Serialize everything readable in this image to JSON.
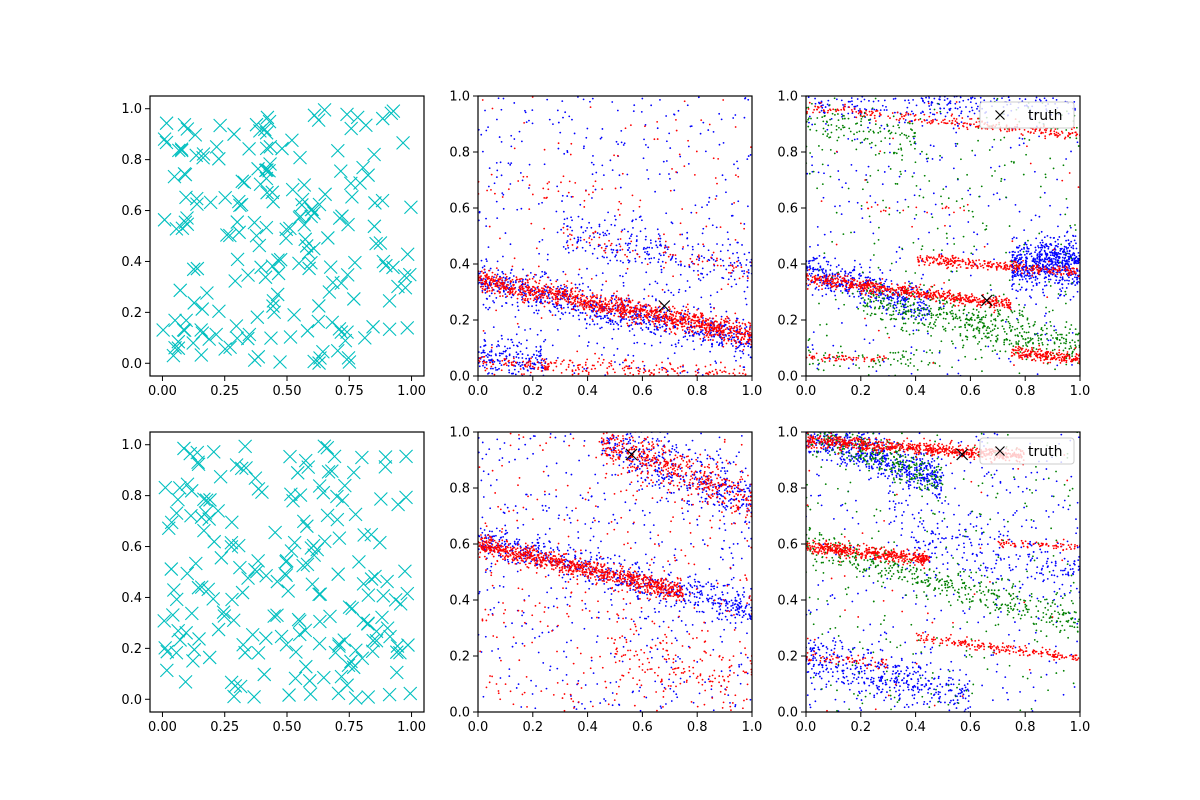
{
  "figure": {
    "colors": {
      "cyan": "#00bfbf",
      "red": "#ff0000",
      "blue": "#0000ff",
      "green": "#008000",
      "black": "#000000"
    },
    "legend_label": "truth"
  },
  "chart_data": [
    {
      "type": "scatter",
      "row": 0,
      "col": 0,
      "xlim": [
        -0.05,
        1.05
      ],
      "ylim": [
        -0.05,
        1.05
      ],
      "xticks": [
        "0.00",
        "0.25",
        "0.50",
        "0.75",
        "1.00"
      ],
      "yticks": [
        "0.0",
        "0.2",
        "0.4",
        "0.6",
        "0.8",
        "1.0"
      ],
      "series": [
        {
          "marker": "x",
          "color": "cyan",
          "count": 200,
          "distribution": "uniform",
          "seed": 11
        }
      ]
    },
    {
      "type": "scatter",
      "row": 0,
      "col": 1,
      "xlim": [
        0,
        1
      ],
      "ylim": [
        0,
        1
      ],
      "xticks": [
        "0.0",
        "0.2",
        "0.4",
        "0.6",
        "0.8",
        "1.0"
      ],
      "yticks": [
        "0.0",
        "0.2",
        "0.4",
        "0.6",
        "0.8",
        "1.0"
      ],
      "series": [
        {
          "color": "blue",
          "marker": "dot",
          "uniform": 450,
          "bands": [
            {
              "x": [
                0.0,
                0.25
              ],
              "y0": 0.07,
              "slope": -0.1,
              "sigma": 0.04,
              "n": 180
            },
            {
              "x": [
                0.0,
                1.0
              ],
              "y0": 0.34,
              "slope": -0.22,
              "sigma": 0.035,
              "n": 700
            },
            {
              "x": [
                0.3,
                1.0
              ],
              "y0": 0.56,
              "slope": -0.18,
              "sigma": 0.04,
              "n": 220
            }
          ]
        },
        {
          "color": "red",
          "marker": "dot",
          "uniform": 120,
          "bands": [
            {
              "x": [
                0.0,
                1.0
              ],
              "y0": 0.345,
              "slope": -0.2,
              "sigma": 0.02,
              "n": 1200
            },
            {
              "x": [
                0.0,
                1.0
              ],
              "y0": 0.05,
              "slope": -0.05,
              "sigma": 0.015,
              "n": 250
            },
            {
              "x": [
                0.3,
                1.0
              ],
              "y0": 0.56,
              "slope": -0.18,
              "sigma": 0.025,
              "n": 80
            },
            {
              "x": [
                0.0,
                0.6
              ],
              "y0": 0.67,
              "slope": -0.05,
              "sigma": 0.02,
              "n": 30
            }
          ]
        }
      ],
      "truth": {
        "x": 0.68,
        "y": 0.25
      }
    },
    {
      "type": "scatter",
      "row": 0,
      "col": 2,
      "xlim": [
        0,
        1
      ],
      "ylim": [
        0,
        1
      ],
      "xticks": [
        "0.0",
        "0.2",
        "0.4",
        "0.6",
        "0.8",
        "1.0"
      ],
      "yticks": [
        "0.0",
        "0.2",
        "0.4",
        "0.6",
        "0.8",
        "1.0"
      ],
      "series": [
        {
          "color": "blue",
          "marker": "dot",
          "uniform": 300,
          "bands": [
            {
              "x": [
                0.0,
                0.45
              ],
              "y0": 0.38,
              "slope": -0.3,
              "sigma": 0.035,
              "n": 400
            },
            {
              "x": [
                0.75,
                1.0
              ],
              "y0": 0.4,
              "slope": 0.0,
              "sigma": 0.045,
              "n": 600
            },
            {
              "x": [
                0.0,
                1.0
              ],
              "y0": 0.95,
              "slope": 0.05,
              "sigma": 0.03,
              "n": 250
            }
          ]
        },
        {
          "color": "green",
          "marker": "dot",
          "uniform": 300,
          "bands": [
            {
              "x": [
                0.2,
                1.0
              ],
              "y0": 0.32,
              "slope": -0.22,
              "sigma": 0.04,
              "n": 500
            },
            {
              "x": [
                0.0,
                0.4
              ],
              "y0": 0.93,
              "slope": -0.2,
              "sigma": 0.04,
              "n": 120
            },
            {
              "x": [
                0.0,
                0.5
              ],
              "y0": 0.06,
              "slope": 0.0,
              "sigma": 0.02,
              "n": 60
            }
          ]
        },
        {
          "color": "red",
          "marker": "dot",
          "uniform": 30,
          "bands": [
            {
              "x": [
                0.0,
                0.75
              ],
              "y0": 0.35,
              "slope": -0.13,
              "sigma": 0.012,
              "n": 600
            },
            {
              "x": [
                0.4,
                1.0
              ],
              "y0": 0.45,
              "slope": -0.08,
              "sigma": 0.01,
              "n": 300
            },
            {
              "x": [
                0.0,
                1.0
              ],
              "y0": 0.96,
              "slope": -0.1,
              "sigma": 0.01,
              "n": 250
            },
            {
              "x": [
                0.75,
                1.0
              ],
              "y0": 0.16,
              "slope": -0.1,
              "sigma": 0.012,
              "n": 200
            },
            {
              "x": [
                0.0,
                0.3
              ],
              "y0": 0.065,
              "slope": -0.02,
              "sigma": 0.006,
              "n": 60
            },
            {
              "x": [
                0.2,
                0.6
              ],
              "y0": 0.6,
              "slope": 0.0,
              "sigma": 0.008,
              "n": 20
            }
          ]
        }
      ],
      "truth": {
        "x": 0.66,
        "y": 0.27
      },
      "legend": {
        "placement": "upper right",
        "label": "truth"
      }
    },
    {
      "type": "scatter",
      "row": 1,
      "col": 0,
      "xlim": [
        -0.05,
        1.05
      ],
      "ylim": [
        -0.05,
        1.05
      ],
      "xticks": [
        "0.00",
        "0.25",
        "0.50",
        "0.75",
        "1.00"
      ],
      "yticks": [
        "0.0",
        "0.2",
        "0.4",
        "0.6",
        "0.8",
        "1.0"
      ],
      "series": [
        {
          "marker": "x",
          "color": "cyan",
          "count": 200,
          "distribution": "uniform",
          "seed": 23
        }
      ]
    },
    {
      "type": "scatter",
      "row": 1,
      "col": 1,
      "xlim": [
        0,
        1
      ],
      "ylim": [
        0,
        1
      ],
      "xticks": [
        "0.0",
        "0.2",
        "0.4",
        "0.6",
        "0.8",
        "1.0"
      ],
      "yticks": [
        "0.0",
        "0.2",
        "0.4",
        "0.6",
        "0.8",
        "1.0"
      ],
      "series": [
        {
          "color": "blue",
          "marker": "dot",
          "uniform": 500,
          "bands": [
            {
              "x": [
                0.0,
                1.0
              ],
              "y0": 0.62,
              "slope": -0.26,
              "sigma": 0.03,
              "n": 600
            },
            {
              "x": [
                0.45,
                1.0
              ],
              "y0": 1.15,
              "slope": -0.4,
              "sigma": 0.05,
              "n": 400
            }
          ]
        },
        {
          "color": "red",
          "marker": "dot",
          "uniform": 350,
          "bands": [
            {
              "x": [
                0.0,
                0.75
              ],
              "y0": 0.6,
              "slope": -0.23,
              "sigma": 0.018,
              "n": 900
            },
            {
              "x": [
                0.45,
                1.0
              ],
              "y0": 1.15,
              "slope": -0.4,
              "sigma": 0.04,
              "n": 450
            },
            {
              "x": [
                0.5,
                1.0
              ],
              "y0": 0.3,
              "slope": -0.18,
              "sigma": 0.05,
              "n": 150
            }
          ]
        }
      ],
      "truth": {
        "x": 0.56,
        "y": 0.92
      }
    },
    {
      "type": "scatter",
      "row": 1,
      "col": 2,
      "xlim": [
        0,
        1
      ],
      "ylim": [
        0,
        1
      ],
      "xticks": [
        "0.0",
        "0.2",
        "0.4",
        "0.6",
        "0.8",
        "1.0"
      ],
      "yticks": [
        "0.0",
        "0.2",
        "0.4",
        "0.6",
        "0.8",
        "1.0"
      ],
      "series": [
        {
          "color": "blue",
          "marker": "dot",
          "uniform": 350,
          "bands": [
            {
              "x": [
                0.0,
                0.5
              ],
              "y0": 1.0,
              "slope": -0.35,
              "sigma": 0.035,
              "n": 600
            },
            {
              "x": [
                0.0,
                0.6
              ],
              "y0": 0.2,
              "slope": -0.25,
              "sigma": 0.04,
              "n": 400
            },
            {
              "x": [
                0.3,
                1.0
              ],
              "y0": 0.75,
              "slope": -0.25,
              "sigma": 0.06,
              "n": 250
            }
          ]
        },
        {
          "color": "green",
          "marker": "dot",
          "uniform": 250,
          "bands": [
            {
              "x": [
                0.0,
                0.5
              ],
              "y0": 1.0,
              "slope": -0.35,
              "sigma": 0.035,
              "n": 300
            },
            {
              "x": [
                0.0,
                1.0
              ],
              "y0": 0.6,
              "slope": -0.28,
              "sigma": 0.035,
              "n": 450
            }
          ]
        },
        {
          "color": "red",
          "marker": "dot",
          "uniform": 40,
          "bands": [
            {
              "x": [
                0.0,
                0.8
              ],
              "y0": 0.97,
              "slope": -0.07,
              "sigma": 0.012,
              "n": 700
            },
            {
              "x": [
                0.0,
                0.45
              ],
              "y0": 0.59,
              "slope": -0.1,
              "sigma": 0.012,
              "n": 450
            },
            {
              "x": [
                0.4,
                1.0
              ],
              "y0": 0.32,
              "slope": -0.13,
              "sigma": 0.01,
              "n": 200
            },
            {
              "x": [
                0.7,
                1.0
              ],
              "y0": 0.64,
              "slope": -0.05,
              "sigma": 0.008,
              "n": 70
            },
            {
              "x": [
                0.0,
                0.3
              ],
              "y0": 0.2,
              "slope": -0.1,
              "sigma": 0.01,
              "n": 60
            }
          ]
        }
      ],
      "truth": {
        "x": 0.57,
        "y": 0.92
      },
      "legend": {
        "placement": "upper right",
        "label": "truth"
      }
    }
  ]
}
